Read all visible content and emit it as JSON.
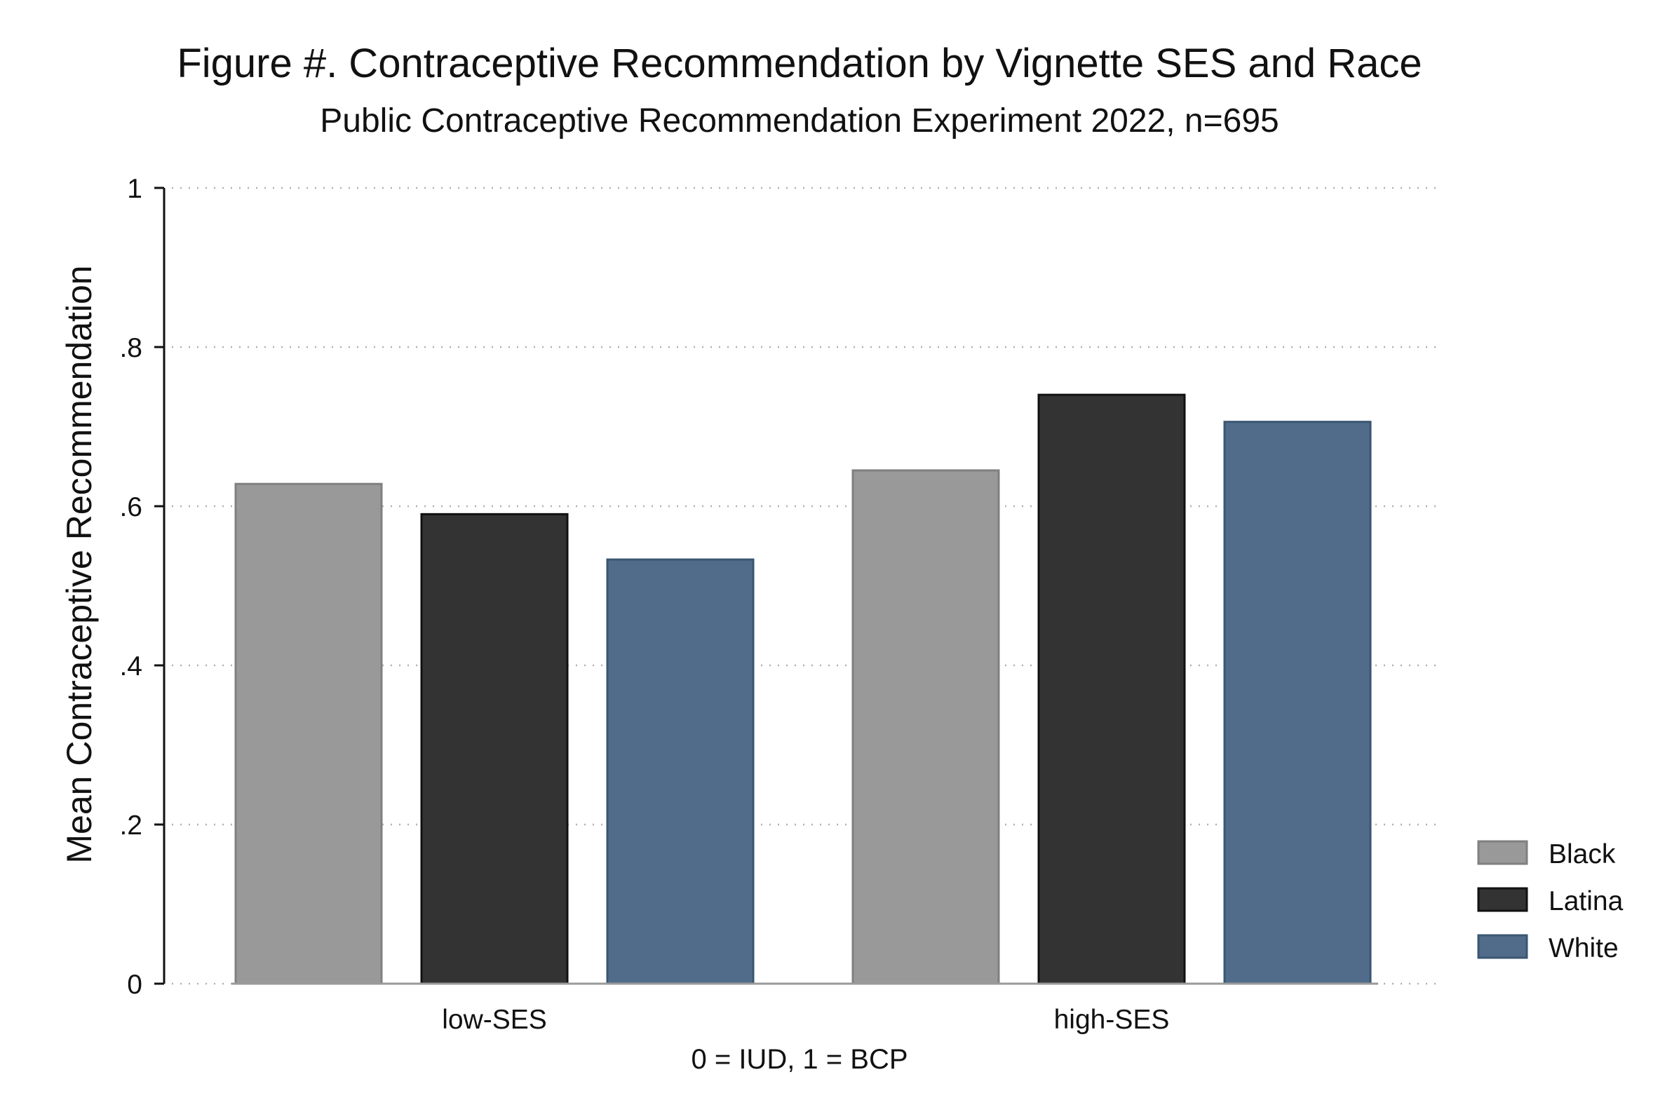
{
  "chart_data": {
    "type": "bar",
    "title": "Figure #. Contraceptive Recommendation by Vignette SES and Race",
    "subtitle": "Public Contraceptive Recommendation Experiment 2022, n=695",
    "xlabel": "0 = IUD, 1 = BCP",
    "ylabel": "Mean Contraceptive Recommendation",
    "categories": [
      "low-SES",
      "high-SES"
    ],
    "series": [
      {
        "name": "Black",
        "values": [
          0.628,
          0.645
        ],
        "color": "#999999",
        "stroke": "#808080"
      },
      {
        "name": "Latina",
        "values": [
          0.59,
          0.74
        ],
        "color": "#333333",
        "stroke": "#111111"
      },
      {
        "name": "White",
        "values": [
          0.533,
          0.706
        ],
        "color": "#506c8a",
        "stroke": "#3a5672"
      }
    ],
    "ylim": [
      0,
      1
    ],
    "yticks": [
      0,
      0.2,
      0.4,
      0.6,
      0.8,
      1
    ],
    "ytick_labels": [
      "0",
      ".2",
      ".4",
      ".6",
      ".8",
      "1"
    ],
    "grid": "horizontal dotted",
    "legend_position": "right"
  }
}
